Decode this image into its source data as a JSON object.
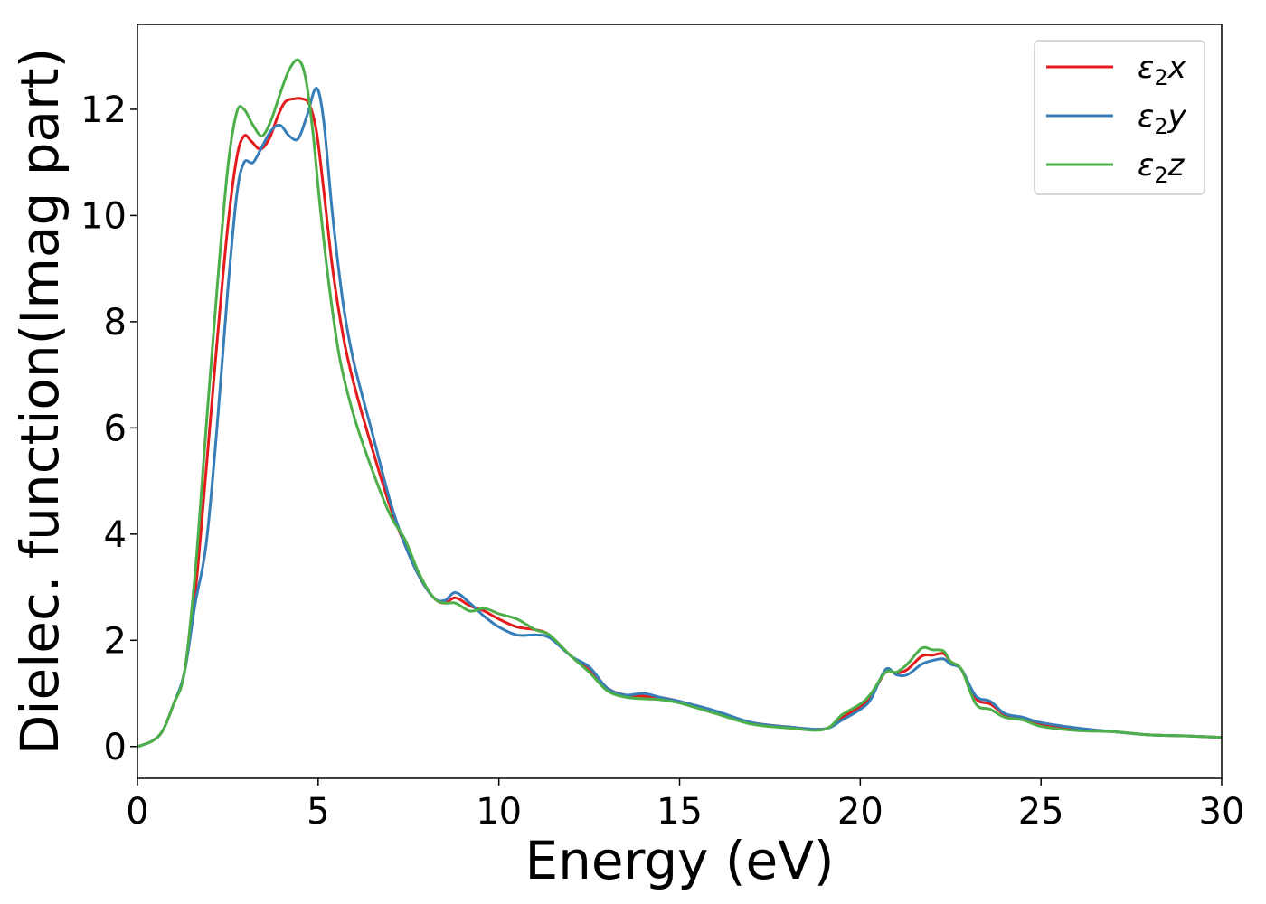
{
  "chart_data": {
    "type": "line",
    "title": "",
    "xlabel": "Energy (eV)",
    "ylabel": "Dielec. function(Imag part)",
    "xlim": [
      0,
      30
    ],
    "ylim": [
      -0.6,
      13.6
    ],
    "xticks": [
      0,
      5,
      10,
      15,
      20,
      25,
      30
    ],
    "yticks": [
      0,
      2,
      4,
      6,
      8,
      10,
      12
    ],
    "grid": false,
    "legend_position": "top-right",
    "series": [
      {
        "name": "ε2x",
        "legend_base": "ε",
        "legend_sub": "2",
        "legend_var": "x",
        "color": "#e41a1c",
        "points": [
          [
            0,
            0
          ],
          [
            0.4,
            0.1
          ],
          [
            0.7,
            0.3
          ],
          [
            1.0,
            0.8
          ],
          [
            1.3,
            1.4
          ],
          [
            1.6,
            2.9
          ],
          [
            1.9,
            5.2
          ],
          [
            2.2,
            7.6
          ],
          [
            2.5,
            9.8
          ],
          [
            2.75,
            11.1
          ],
          [
            2.95,
            11.5
          ],
          [
            3.15,
            11.4
          ],
          [
            3.4,
            11.25
          ],
          [
            3.65,
            11.45
          ],
          [
            3.9,
            11.9
          ],
          [
            4.1,
            12.15
          ],
          [
            4.35,
            12.2
          ],
          [
            4.55,
            12.2
          ],
          [
            4.75,
            12.1
          ],
          [
            4.95,
            11.6
          ],
          [
            5.15,
            10.5
          ],
          [
            5.4,
            9.0
          ],
          [
            5.7,
            7.7
          ],
          [
            6.0,
            6.8
          ],
          [
            6.5,
            5.6
          ],
          [
            7.0,
            4.5
          ],
          [
            7.4,
            3.8
          ],
          [
            7.8,
            3.2
          ],
          [
            8.2,
            2.8
          ],
          [
            8.5,
            2.7
          ],
          [
            8.8,
            2.8
          ],
          [
            9.2,
            2.65
          ],
          [
            9.6,
            2.55
          ],
          [
            10.0,
            2.4
          ],
          [
            10.5,
            2.25
          ],
          [
            11.0,
            2.2
          ],
          [
            11.4,
            2.1
          ],
          [
            12.0,
            1.7
          ],
          [
            12.5,
            1.45
          ],
          [
            13.0,
            1.1
          ],
          [
            13.5,
            0.97
          ],
          [
            14.0,
            0.95
          ],
          [
            14.5,
            0.92
          ],
          [
            15.0,
            0.85
          ],
          [
            16.0,
            0.65
          ],
          [
            17.0,
            0.45
          ],
          [
            18.0,
            0.37
          ],
          [
            19.0,
            0.33
          ],
          [
            19.5,
            0.55
          ],
          [
            20.0,
            0.75
          ],
          [
            20.3,
            0.95
          ],
          [
            20.7,
            1.4
          ],
          [
            21.0,
            1.38
          ],
          [
            21.3,
            1.45
          ],
          [
            21.7,
            1.7
          ],
          [
            22.0,
            1.72
          ],
          [
            22.3,
            1.75
          ],
          [
            22.5,
            1.6
          ],
          [
            22.8,
            1.45
          ],
          [
            23.2,
            0.9
          ],
          [
            23.6,
            0.8
          ],
          [
            24.0,
            0.6
          ],
          [
            24.5,
            0.5
          ],
          [
            25.0,
            0.42
          ],
          [
            26.0,
            0.32
          ],
          [
            27.0,
            0.28
          ],
          [
            28.0,
            0.22
          ],
          [
            29.0,
            0.2
          ],
          [
            30.0,
            0.17
          ]
        ]
      },
      {
        "name": "ε2y",
        "legend_base": "ε",
        "legend_sub": "2",
        "legend_var": "y",
        "color": "#377eb8",
        "points": [
          [
            0,
            0
          ],
          [
            0.4,
            0.1
          ],
          [
            0.7,
            0.3
          ],
          [
            1.0,
            0.8
          ],
          [
            1.3,
            1.4
          ],
          [
            1.6,
            2.7
          ],
          [
            1.9,
            3.8
          ],
          [
            2.2,
            6.0
          ],
          [
            2.5,
            8.6
          ],
          [
            2.75,
            10.4
          ],
          [
            2.95,
            11.0
          ],
          [
            3.2,
            11.0
          ],
          [
            3.45,
            11.3
          ],
          [
            3.7,
            11.6
          ],
          [
            3.95,
            11.7
          ],
          [
            4.2,
            11.5
          ],
          [
            4.45,
            11.45
          ],
          [
            4.7,
            11.9
          ],
          [
            4.95,
            12.4
          ],
          [
            5.15,
            11.8
          ],
          [
            5.4,
            10.0
          ],
          [
            5.7,
            8.3
          ],
          [
            6.0,
            7.2
          ],
          [
            6.5,
            5.9
          ],
          [
            7.0,
            4.6
          ],
          [
            7.4,
            3.8
          ],
          [
            7.8,
            3.2
          ],
          [
            8.2,
            2.8
          ],
          [
            8.5,
            2.75
          ],
          [
            8.8,
            2.9
          ],
          [
            9.2,
            2.7
          ],
          [
            9.6,
            2.45
          ],
          [
            10.0,
            2.25
          ],
          [
            10.5,
            2.1
          ],
          [
            11.0,
            2.1
          ],
          [
            11.4,
            2.05
          ],
          [
            12.0,
            1.7
          ],
          [
            12.5,
            1.5
          ],
          [
            13.0,
            1.1
          ],
          [
            13.5,
            0.97
          ],
          [
            14.0,
            1.0
          ],
          [
            14.5,
            0.92
          ],
          [
            15.0,
            0.85
          ],
          [
            16.0,
            0.67
          ],
          [
            17.0,
            0.45
          ],
          [
            18.0,
            0.37
          ],
          [
            19.0,
            0.33
          ],
          [
            19.5,
            0.5
          ],
          [
            20.0,
            0.7
          ],
          [
            20.3,
            0.9
          ],
          [
            20.7,
            1.45
          ],
          [
            21.0,
            1.35
          ],
          [
            21.3,
            1.35
          ],
          [
            21.7,
            1.55
          ],
          [
            22.0,
            1.62
          ],
          [
            22.3,
            1.65
          ],
          [
            22.5,
            1.55
          ],
          [
            22.8,
            1.45
          ],
          [
            23.2,
            0.95
          ],
          [
            23.6,
            0.85
          ],
          [
            24.0,
            0.62
          ],
          [
            24.5,
            0.55
          ],
          [
            25.0,
            0.45
          ],
          [
            26.0,
            0.35
          ],
          [
            27.0,
            0.28
          ],
          [
            28.0,
            0.22
          ],
          [
            29.0,
            0.2
          ],
          [
            30.0,
            0.17
          ]
        ]
      },
      {
        "name": "ε2z",
        "legend_base": "ε",
        "legend_sub": "2",
        "legend_var": "z",
        "color": "#4daf4a",
        "points": [
          [
            0,
            0
          ],
          [
            0.4,
            0.1
          ],
          [
            0.7,
            0.3
          ],
          [
            1.0,
            0.8
          ],
          [
            1.3,
            1.4
          ],
          [
            1.6,
            3.3
          ],
          [
            1.9,
            6.0
          ],
          [
            2.2,
            8.6
          ],
          [
            2.5,
            10.9
          ],
          [
            2.75,
            11.95
          ],
          [
            2.95,
            12.0
          ],
          [
            3.2,
            11.7
          ],
          [
            3.45,
            11.5
          ],
          [
            3.7,
            11.8
          ],
          [
            3.95,
            12.3
          ],
          [
            4.2,
            12.75
          ],
          [
            4.45,
            12.93
          ],
          [
            4.65,
            12.6
          ],
          [
            4.85,
            11.6
          ],
          [
            5.05,
            10.2
          ],
          [
            5.3,
            8.7
          ],
          [
            5.6,
            7.3
          ],
          [
            6.0,
            6.2
          ],
          [
            6.5,
            5.2
          ],
          [
            7.0,
            4.35
          ],
          [
            7.4,
            3.9
          ],
          [
            7.8,
            3.25
          ],
          [
            8.2,
            2.8
          ],
          [
            8.5,
            2.7
          ],
          [
            8.8,
            2.7
          ],
          [
            9.2,
            2.55
          ],
          [
            9.6,
            2.6
          ],
          [
            10.0,
            2.5
          ],
          [
            10.5,
            2.4
          ],
          [
            11.0,
            2.2
          ],
          [
            11.4,
            2.1
          ],
          [
            12.0,
            1.7
          ],
          [
            12.5,
            1.4
          ],
          [
            13.0,
            1.05
          ],
          [
            13.5,
            0.93
          ],
          [
            14.0,
            0.9
          ],
          [
            14.5,
            0.88
          ],
          [
            15.0,
            0.82
          ],
          [
            16.0,
            0.62
          ],
          [
            17.0,
            0.42
          ],
          [
            18.0,
            0.35
          ],
          [
            19.0,
            0.32
          ],
          [
            19.5,
            0.6
          ],
          [
            20.0,
            0.8
          ],
          [
            20.3,
            1.0
          ],
          [
            20.7,
            1.4
          ],
          [
            21.0,
            1.4
          ],
          [
            21.3,
            1.55
          ],
          [
            21.7,
            1.85
          ],
          [
            22.0,
            1.82
          ],
          [
            22.3,
            1.8
          ],
          [
            22.5,
            1.6
          ],
          [
            22.8,
            1.45
          ],
          [
            23.2,
            0.8
          ],
          [
            23.6,
            0.7
          ],
          [
            24.0,
            0.55
          ],
          [
            24.5,
            0.5
          ],
          [
            25.0,
            0.38
          ],
          [
            26.0,
            0.3
          ],
          [
            27.0,
            0.28
          ],
          [
            28.0,
            0.22
          ],
          [
            29.0,
            0.2
          ],
          [
            30.0,
            0.17
          ]
        ]
      }
    ]
  }
}
